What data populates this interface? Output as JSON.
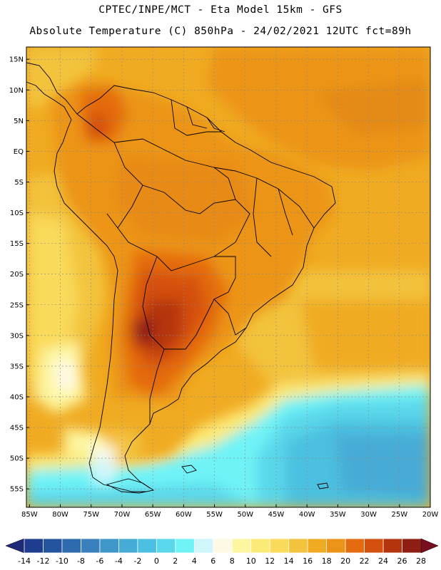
{
  "title_line1": "CPTEC/INPE/MCT -  Eta Model 15km - GFS",
  "title_line2": "Absolute Temperature (C) 850hPa - 24/02/2021 12UTC fct=89h",
  "lat_labels": [
    "15N",
    "10N",
    "5N",
    "EQ",
    "5S",
    "10S",
    "15S",
    "20S",
    "25S",
    "30S",
    "35S",
    "40S",
    "45S",
    "50S",
    "55S"
  ],
  "lat_values": [
    15,
    10,
    5,
    0,
    -5,
    -10,
    -15,
    -20,
    -25,
    -30,
    -35,
    -40,
    -45,
    -50,
    -55
  ],
  "lon_labels": [
    "85W",
    "80W",
    "75W",
    "70W",
    "65W",
    "60W",
    "55W",
    "50W",
    "45W",
    "40W",
    "35W",
    "30W",
    "25W",
    "20W"
  ],
  "lon_values": [
    -85,
    -80,
    -75,
    -70,
    -65,
    -60,
    -55,
    -50,
    -45,
    -40,
    -35,
    -30,
    -25,
    -20
  ],
  "map_extent": {
    "lon_min": -85.5,
    "lon_max": -20,
    "lat_min": -58,
    "lat_max": 17
  },
  "colorbar": {
    "labels": [
      "-14",
      "-12",
      "-10",
      "-8",
      "-6",
      "-4",
      "-2",
      "0",
      "2",
      "4",
      "6",
      "8",
      "10",
      "12",
      "14",
      "16",
      "18",
      "20",
      "22",
      "24",
      "26",
      "28"
    ],
    "colors": [
      "#1e3d8f",
      "#25549e",
      "#2e6aae",
      "#3a80bc",
      "#3f96c9",
      "#46abd5",
      "#4cc0e0",
      "#5ad7ea",
      "#6ff3f7",
      "#d0f6fb",
      "#fef9e4",
      "#fdf6a0",
      "#fcea78",
      "#f9da5a",
      "#f3c33d",
      "#f0ab22",
      "#ec9419",
      "#e46b10",
      "#d4500e",
      "#b5340e",
      "#8e1e13"
    ],
    "end_low": "#1e2a78",
    "end_high": "#7a0d1e"
  }
}
